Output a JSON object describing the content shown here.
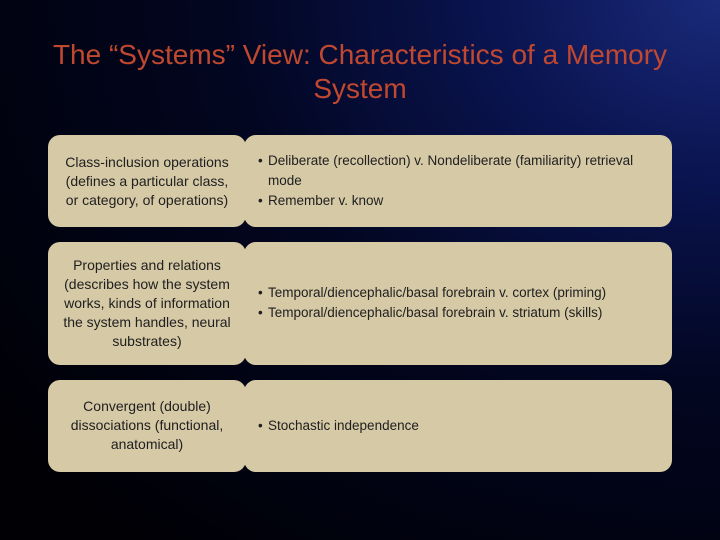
{
  "title": "The “Systems” View:  Characteristics of a Memory System",
  "title_color": "#c04830",
  "title_fontsize": 28,
  "rows": [
    {
      "left": "Class-inclusion operations (defines a particular class, or category, of operations)",
      "bullets": [
        "Deliberate (recollection) v. Nondeliberate (familiarity) retrieval mode",
        "Remember v. know"
      ],
      "min_height": 92
    },
    {
      "left": "Properties and relations (describes how the system works, kinds of information the system handles, neural substrates)",
      "bullets": [
        "Temporal/diencephalic/basal forebrain v. cortex (priming)",
        "Temporal/diencephalic/basal forebrain v. striatum (skills)"
      ],
      "min_height": 118
    },
    {
      "left": "Convergent (double) dissociations (functional, anatomical)",
      "bullets": [
        "Stochastic independence"
      ],
      "min_height": 92
    }
  ],
  "cell_bg": "#d6c9a6",
  "cell_text_color": "#202020",
  "cell_fontsize": 13.5,
  "left_fontsize": 14
}
